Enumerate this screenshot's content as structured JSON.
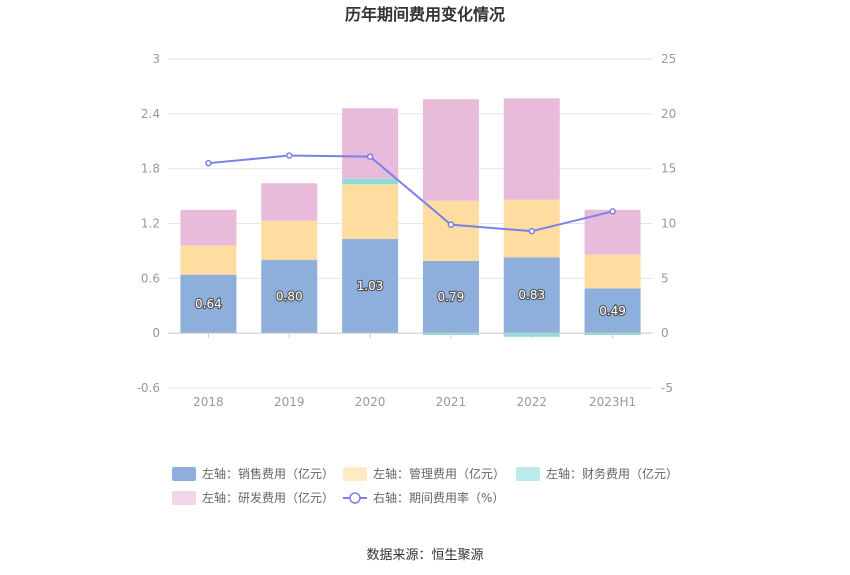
{
  "chart_data": {
    "type": "bar",
    "title": "历年期间费用变化情况",
    "categories": [
      "2018",
      "2019",
      "2020",
      "2021",
      "2022",
      "2023H1"
    ],
    "left_axis": {
      "ylim": [
        -0.6,
        3
      ],
      "ticks": [
        "-0.6",
        "0",
        "0.6",
        "1.2",
        "1.8",
        "2.4",
        "3"
      ]
    },
    "right_axis": {
      "ylim": [
        -5,
        25
      ],
      "ticks": [
        "-5",
        "0",
        "5",
        "10",
        "15",
        "20",
        "25"
      ]
    },
    "series": [
      {
        "name": "左轴：销售费用（亿元）",
        "type": "bar",
        "axis": "left",
        "color": "#8eaedb",
        "values": [
          0.64,
          0.8,
          1.03,
          0.79,
          0.83,
          0.49
        ],
        "labels": [
          "0.64",
          "0.80",
          "1.03",
          "0.79",
          "0.83",
          "0.49"
        ]
      },
      {
        "name": "左轴：管理费用（亿元）",
        "type": "bar",
        "axis": "left",
        "color": "#ffdca0",
        "values": [
          0.32,
          0.43,
          0.6,
          0.66,
          0.63,
          0.37
        ]
      },
      {
        "name": "左轴：财务费用（亿元）",
        "type": "bar",
        "axis": "left",
        "color": "#8fdbdb",
        "values": [
          0.0,
          0.0,
          0.06,
          -0.02,
          -0.04,
          -0.02
        ]
      },
      {
        "name": "左轴：研发费用（亿元）",
        "type": "bar",
        "axis": "left",
        "color": "#e8bbdb",
        "values": [
          0.39,
          0.41,
          0.77,
          1.11,
          1.11,
          0.49
        ]
      },
      {
        "name": "右轴：期间费用率（%）",
        "type": "line",
        "axis": "right",
        "color": "#7b7fe8",
        "values": [
          15.5,
          16.2,
          16.1,
          9.9,
          9.3,
          11.1
        ]
      }
    ],
    "legend_position": "bottom",
    "grid": true
  },
  "source": "数据来源：恒生聚源"
}
